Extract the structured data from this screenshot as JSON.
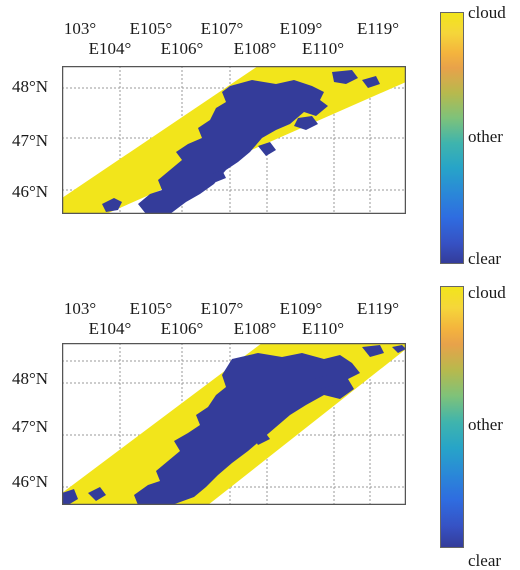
{
  "panels": [
    {
      "x_ticks_top_row": [
        "103°",
        "E105°",
        "E107°",
        "E109°",
        "E119°"
      ],
      "x_ticks_bottom_row": [
        "E104°",
        "E106°",
        "E108°",
        "E110°"
      ],
      "y_ticks": [
        "48°N",
        "47°N",
        "46°N"
      ],
      "colorbar": {
        "top": "cloud",
        "middle": "other",
        "bottom": "clear"
      }
    },
    {
      "x_ticks_top_row": [
        "103°",
        "E105°",
        "E107°",
        "E109°",
        "E119°"
      ],
      "x_ticks_bottom_row": [
        "E104°",
        "E106°",
        "E108°",
        "E110°"
      ],
      "y_ticks": [
        "48°N",
        "47°N",
        "46°N"
      ],
      "colorbar": {
        "top": "cloud",
        "middle": "other",
        "bottom": "clear"
      }
    }
  ],
  "colors": {
    "cloud": "#f2e51b",
    "clear": "#343c9a",
    "grid": "#9a9a9a",
    "frame": "#555555"
  }
}
